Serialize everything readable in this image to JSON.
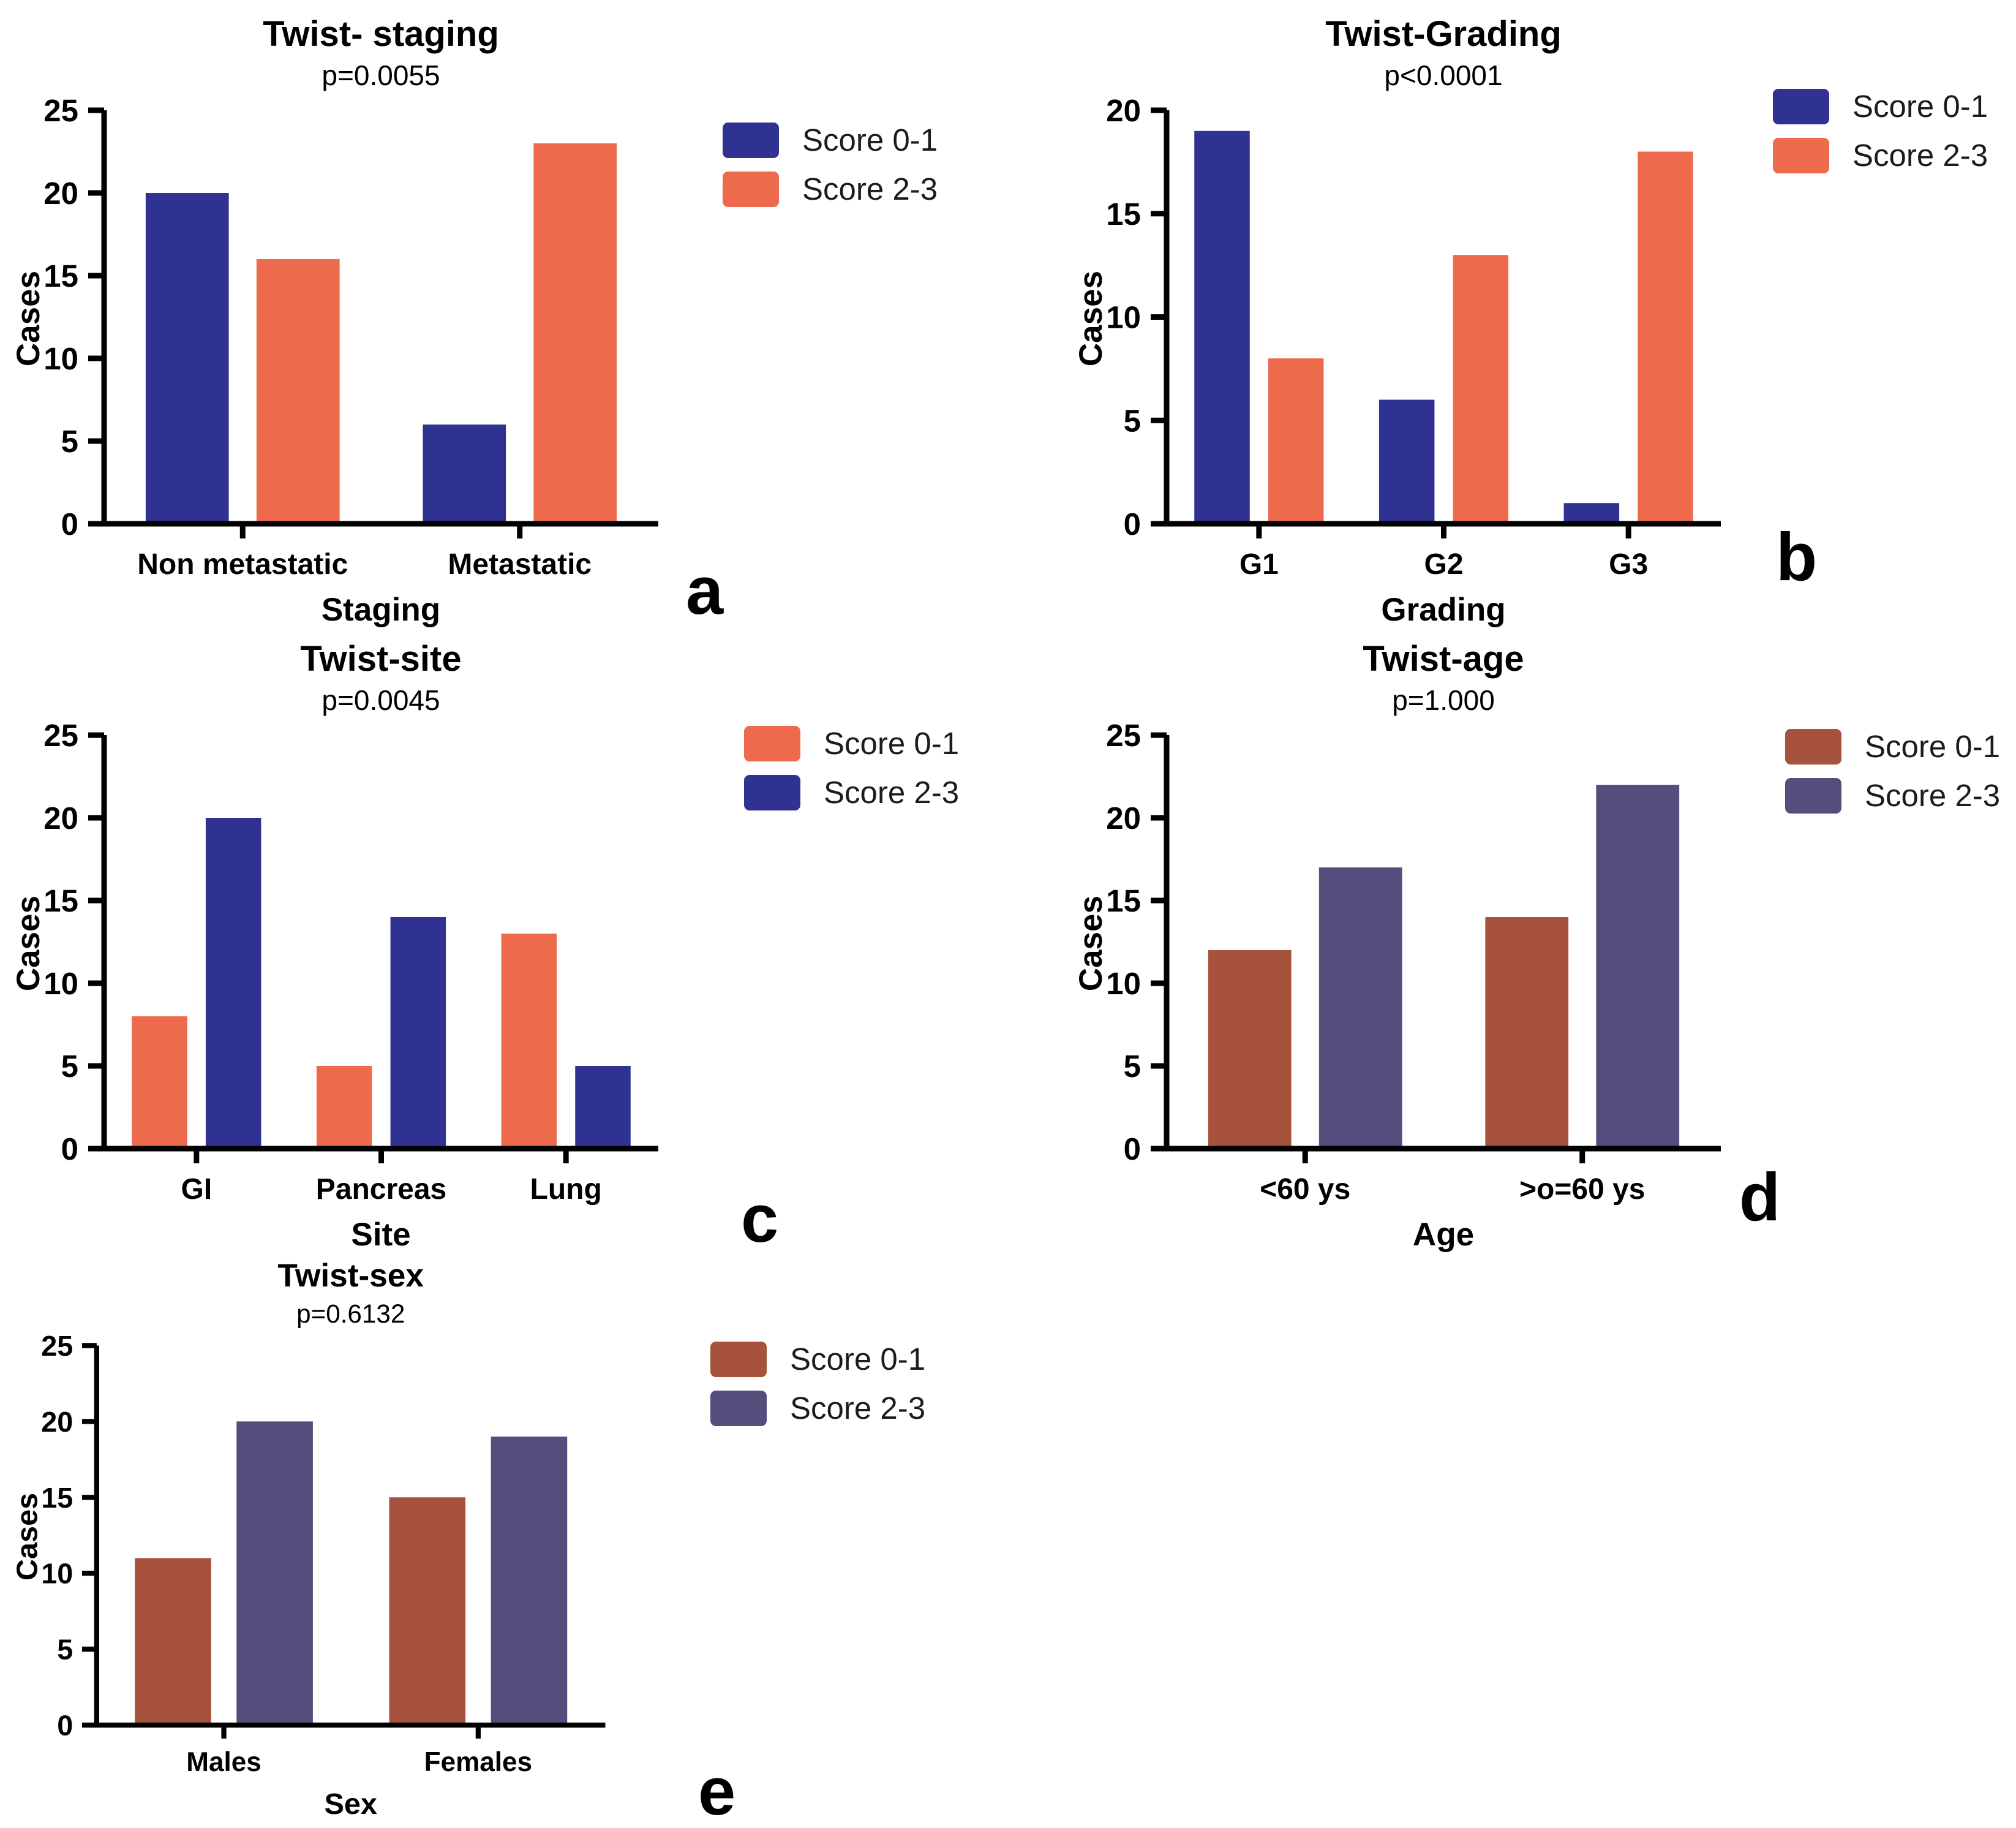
{
  "figure": {
    "background": "#ffffff",
    "axis_color": "#000000",
    "series_colors": {
      "blue": "#2f3291",
      "orange": "#ed6a4d",
      "brick": "#a6523d",
      "slate": "#544e7c"
    }
  },
  "chart_data": [
    {
      "type": "bar",
      "panel_label": "a",
      "title": "Twist- staging",
      "p_value": "p=0.0055",
      "xlabel": "Staging",
      "ylabel": "Cases",
      "ylim": [
        0,
        25
      ],
      "yticks": [
        0,
        5,
        10,
        15,
        20,
        25
      ],
      "grid": false,
      "legend_position": "right",
      "categories": [
        "Non metastatic",
        "Metastatic"
      ],
      "series": [
        {
          "name": "Score 0-1",
          "color": "#2f3291",
          "values": [
            20,
            6
          ]
        },
        {
          "name": "Score 2-3",
          "color": "#ed6a4d",
          "values": [
            16,
            23
          ]
        }
      ]
    },
    {
      "type": "bar",
      "panel_label": "b",
      "title": "Twist-Grading",
      "p_value": "p<0.0001",
      "xlabel": "Grading",
      "ylabel": "Cases",
      "ylim": [
        0,
        20
      ],
      "yticks": [
        0,
        5,
        10,
        15,
        20
      ],
      "grid": false,
      "legend_position": "right",
      "categories": [
        "G1",
        "G2",
        "G3"
      ],
      "series": [
        {
          "name": "Score 0-1",
          "color": "#2f3291",
          "values": [
            19,
            6,
            1
          ]
        },
        {
          "name": "Score 2-3",
          "color": "#ed6a4d",
          "values": [
            8,
            13,
            18
          ]
        }
      ]
    },
    {
      "type": "bar",
      "panel_label": "c",
      "title": "Twist-site",
      "p_value": "p=0.0045",
      "xlabel": "Site",
      "ylabel": "Cases",
      "ylim": [
        0,
        25
      ],
      "yticks": [
        0,
        5,
        10,
        15,
        20,
        25
      ],
      "grid": false,
      "legend_position": "right",
      "categories": [
        "GI",
        "Pancreas",
        "Lung"
      ],
      "series": [
        {
          "name": "Score 0-1",
          "color": "#ed6a4d",
          "values": [
            8,
            5,
            13
          ]
        },
        {
          "name": "Score 2-3",
          "color": "#2f3291",
          "values": [
            20,
            14,
            5
          ]
        }
      ]
    },
    {
      "type": "bar",
      "panel_label": "d",
      "title": "Twist-age",
      "p_value": "p=1.000",
      "xlabel": "Age",
      "ylabel": "Cases",
      "ylim": [
        0,
        25
      ],
      "yticks": [
        0,
        5,
        10,
        15,
        20,
        25
      ],
      "grid": false,
      "legend_position": "right",
      "categories": [
        "<60 ys",
        ">o=60 ys"
      ],
      "series": [
        {
          "name": "Score 0-1",
          "color": "#a6523d",
          "values": [
            12,
            14
          ]
        },
        {
          "name": "Score 2-3",
          "color": "#544e7c",
          "values": [
            17,
            22
          ]
        }
      ]
    },
    {
      "type": "bar",
      "panel_label": "e",
      "title": "Twist-sex",
      "p_value": "p=0.6132",
      "xlabel": "Sex",
      "ylabel": "Cases",
      "ylim": [
        0,
        25
      ],
      "yticks": [
        0,
        5,
        10,
        15,
        20,
        25
      ],
      "grid": false,
      "legend_position": "right",
      "categories": [
        "Males",
        "Females"
      ],
      "series": [
        {
          "name": "Score 0-1",
          "color": "#a6523d",
          "values": [
            11,
            15
          ]
        },
        {
          "name": "Score 2-3",
          "color": "#544e7c",
          "values": [
            20,
            19
          ]
        }
      ]
    }
  ]
}
